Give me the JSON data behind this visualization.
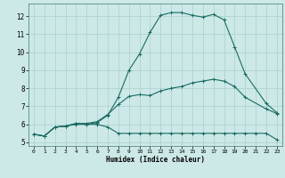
{
  "title": "",
  "xlabel": "Humidex (Indice chaleur)",
  "xlim": [
    -0.5,
    23.5
  ],
  "ylim": [
    4.8,
    12.7
  ],
  "yticks": [
    5,
    6,
    7,
    8,
    9,
    10,
    11,
    12
  ],
  "xticks": [
    0,
    1,
    2,
    3,
    4,
    5,
    6,
    7,
    8,
    9,
    10,
    11,
    12,
    13,
    14,
    15,
    16,
    17,
    18,
    19,
    20,
    21,
    22,
    23
  ],
  "bg_color": "#cce9e7",
  "line_color": "#1a6b63",
  "grid_color": "#aacfcc",
  "curve1_x": [
    0,
    1,
    2,
    3,
    4,
    5,
    6,
    7,
    8,
    9,
    10,
    11,
    12,
    13,
    14,
    15,
    16,
    17,
    18,
    19,
    20,
    21,
    22,
    23
  ],
  "curve1_y": [
    5.45,
    5.35,
    5.85,
    5.9,
    6.0,
    6.0,
    6.0,
    5.85,
    5.5,
    5.5,
    5.5,
    5.5,
    5.5,
    5.5,
    5.5,
    5.5,
    5.5,
    5.5,
    5.5,
    5.5,
    5.5,
    5.5,
    5.5,
    5.15
  ],
  "curve2_x": [
    0,
    1,
    2,
    3,
    4,
    5,
    6,
    7,
    8,
    9,
    10,
    11,
    12,
    13,
    14,
    15,
    16,
    17,
    18,
    19,
    20,
    22,
    23
  ],
  "curve2_y": [
    5.45,
    5.35,
    5.85,
    5.9,
    6.05,
    6.05,
    6.15,
    6.55,
    7.1,
    7.55,
    7.65,
    7.6,
    7.85,
    8.0,
    8.1,
    8.3,
    8.4,
    8.5,
    8.4,
    8.1,
    7.5,
    6.85,
    6.6
  ],
  "curve3_x": [
    0,
    1,
    2,
    3,
    4,
    5,
    6,
    7,
    8,
    9,
    10,
    11,
    12,
    13,
    14,
    15,
    16,
    17,
    18,
    19,
    20,
    22,
    23
  ],
  "curve3_y": [
    5.45,
    5.35,
    5.85,
    5.9,
    6.05,
    6.0,
    6.1,
    6.5,
    7.5,
    9.0,
    9.9,
    11.1,
    12.05,
    12.2,
    12.2,
    12.05,
    11.95,
    12.1,
    11.8,
    10.3,
    8.8,
    7.15,
    6.65
  ]
}
